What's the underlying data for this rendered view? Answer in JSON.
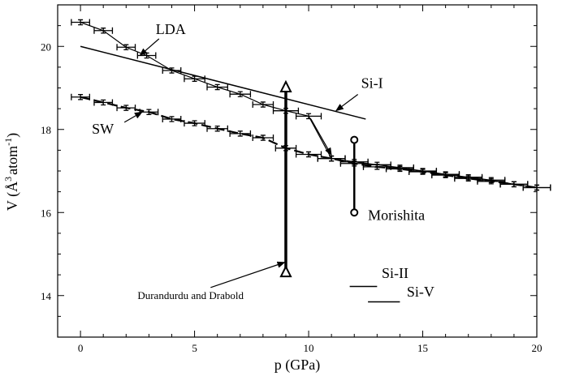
{
  "chart_data": {
    "type": "line",
    "xlabel": "p (GPa)",
    "ylabel_parts": {
      "prefix": "V (",
      "unit_a": "Å",
      "exp_a": "3",
      "unit_b": "atom",
      "exp_b": "-1",
      "suffix": ")"
    },
    "xlim": [
      -1,
      20
    ],
    "ylim": [
      13,
      21
    ],
    "xticks": [
      0,
      5,
      10,
      15,
      20
    ],
    "yticks": [
      14,
      16,
      18,
      20
    ],
    "x_minor_step": 1,
    "y_minor_step": 0.5,
    "grid": false,
    "series": [
      {
        "style": "solid-errorbar",
        "points": [
          {
            "x": 0.0,
            "y": 20.58,
            "xerr": 0.4,
            "yerr": 0.06
          },
          {
            "x": 1.0,
            "y": 20.38,
            "xerr": 0.4,
            "yerr": 0.06
          },
          {
            "x": 2.0,
            "y": 19.98,
            "xerr": 0.4,
            "yerr": 0.06
          },
          {
            "x": 2.9,
            "y": 19.78,
            "xerr": 0.4,
            "yerr": 0.06
          },
          {
            "x": 4.0,
            "y": 19.42,
            "xerr": 0.4,
            "yerr": 0.06
          },
          {
            "x": 5.0,
            "y": 19.22,
            "xerr": 0.45,
            "yerr": 0.06
          },
          {
            "x": 6.0,
            "y": 19.02,
            "xerr": 0.45,
            "yerr": 0.06
          },
          {
            "x": 7.0,
            "y": 18.85,
            "xerr": 0.45,
            "yerr": 0.06
          },
          {
            "x": 8.0,
            "y": 18.6,
            "xerr": 0.45,
            "yerr": 0.06
          },
          {
            "x": 9.0,
            "y": 18.45,
            "xerr": 0.55,
            "yerr": 0.06
          },
          {
            "x": 10.0,
            "y": 18.32,
            "xerr": 0.55,
            "yerr": 0.06
          },
          {
            "x": 11.0,
            "y": 17.3,
            "xerr": 0.6,
            "yerr": 0.06
          },
          {
            "x": 12.0,
            "y": 17.22,
            "xerr": 0.6,
            "yerr": 0.06
          },
          {
            "x": 13.0,
            "y": 17.15,
            "xerr": 0.6,
            "yerr": 0.06
          },
          {
            "x": 14.0,
            "y": 17.08,
            "xerr": 0.6,
            "yerr": 0.06
          },
          {
            "x": 15.0,
            "y": 17.0,
            "xerr": 0.6,
            "yerr": 0.06
          },
          {
            "x": 16.0,
            "y": 16.92,
            "xerr": 0.6,
            "yerr": 0.06
          },
          {
            "x": 17.0,
            "y": 16.85,
            "xerr": 0.6,
            "yerr": 0.06
          },
          {
            "x": 18.0,
            "y": 16.78,
            "xerr": 0.6,
            "yerr": 0.06
          },
          {
            "x": 19.0,
            "y": 16.68,
            "xerr": 0.6,
            "yerr": 0.06
          },
          {
            "x": 20.0,
            "y": 16.6,
            "xerr": 0.6,
            "yerr": 0.06
          }
        ]
      },
      {
        "style": "dashed-errorbar",
        "points": [
          {
            "x": 0.0,
            "y": 18.78,
            "xerr": 0.4,
            "yerr": 0.06
          },
          {
            "x": 1.0,
            "y": 18.65,
            "xerr": 0.4,
            "yerr": 0.06
          },
          {
            "x": 2.0,
            "y": 18.52,
            "xerr": 0.4,
            "yerr": 0.06
          },
          {
            "x": 3.0,
            "y": 18.42,
            "xerr": 0.4,
            "yerr": 0.06
          },
          {
            "x": 4.0,
            "y": 18.25,
            "xerr": 0.4,
            "yerr": 0.06
          },
          {
            "x": 5.0,
            "y": 18.15,
            "xerr": 0.45,
            "yerr": 0.06
          },
          {
            "x": 6.0,
            "y": 18.02,
            "xerr": 0.45,
            "yerr": 0.06
          },
          {
            "x": 7.0,
            "y": 17.9,
            "xerr": 0.45,
            "yerr": 0.06
          },
          {
            "x": 8.0,
            "y": 17.8,
            "xerr": 0.45,
            "yerr": 0.06
          },
          {
            "x": 9.0,
            "y": 17.55,
            "xerr": 0.45,
            "yerr": 0.06
          },
          {
            "x": 10.0,
            "y": 17.4,
            "xerr": 0.55,
            "yerr": 0.06
          },
          {
            "x": 11.0,
            "y": 17.3,
            "xerr": 0.6,
            "yerr": 0.06
          },
          {
            "x": 12.0,
            "y": 17.18,
            "xerr": 0.6,
            "yerr": 0.06
          },
          {
            "x": 13.0,
            "y": 17.1,
            "xerr": 0.6,
            "yerr": 0.06
          },
          {
            "x": 14.0,
            "y": 17.05,
            "xerr": 0.6,
            "yerr": 0.06
          },
          {
            "x": 15.0,
            "y": 16.98,
            "xerr": 0.6,
            "yerr": 0.06
          },
          {
            "x": 16.0,
            "y": 16.9,
            "xerr": 0.6,
            "yerr": 0.06
          },
          {
            "x": 17.0,
            "y": 16.82,
            "xerr": 0.6,
            "yerr": 0.06
          },
          {
            "x": 18.0,
            "y": 16.75,
            "xerr": 0.6,
            "yerr": 0.06
          },
          {
            "x": 19.0,
            "y": 16.68,
            "xerr": 0.6,
            "yerr": 0.06
          },
          {
            "x": 20.0,
            "y": 16.6,
            "xerr": 0.6,
            "yerr": 0.06
          }
        ]
      }
    ],
    "reference_lines": [
      {
        "name": "Si-I",
        "x": [
          0,
          12.5
        ],
        "y": [
          20.0,
          18.25
        ]
      },
      {
        "name": "Si-II",
        "x": [
          11.8,
          13.0
        ],
        "y": [
          14.22,
          14.22
        ]
      },
      {
        "name": "Si-V",
        "x": [
          12.6,
          14.0
        ],
        "y": [
          13.85,
          13.85
        ]
      }
    ],
    "range_bars": [
      {
        "name": "Durandurdu and Drabold",
        "x": 9.0,
        "y": [
          14.5,
          19.05
        ],
        "marker": "triangle"
      },
      {
        "name": "Morishita",
        "x": 12.0,
        "y": [
          16.0,
          17.75
        ],
        "marker": "circle"
      }
    ],
    "annotations": [
      {
        "text": "LDA",
        "x": 3.3,
        "y": 20.3,
        "size": "large",
        "arrow_to": [
          2.6,
          19.78
        ]
      },
      {
        "text": "Si-I",
        "x": 12.3,
        "y": 19.0,
        "size": "large",
        "arrow_to": [
          11.2,
          18.45
        ]
      },
      {
        "text": "SW",
        "x": 0.5,
        "y": 17.9,
        "size": "large",
        "arrow_to": [
          2.7,
          18.42
        ]
      },
      {
        "text": "Morishita",
        "x": 12.6,
        "y": 15.82,
        "size": "large"
      },
      {
        "text": "Si-II",
        "x": 13.2,
        "y": 14.42,
        "size": "large"
      },
      {
        "text": "Si-V",
        "x": 14.3,
        "y": 13.98,
        "size": "large"
      },
      {
        "text": "Durandurdu and Drabold",
        "x": 2.5,
        "y": 13.92,
        "size": "small",
        "arrow_to": [
          8.95,
          14.8
        ]
      }
    ],
    "extra_arrows": [
      {
        "from": [
          10.1,
          18.25
        ],
        "to": [
          11.0,
          17.38
        ]
      }
    ]
  }
}
